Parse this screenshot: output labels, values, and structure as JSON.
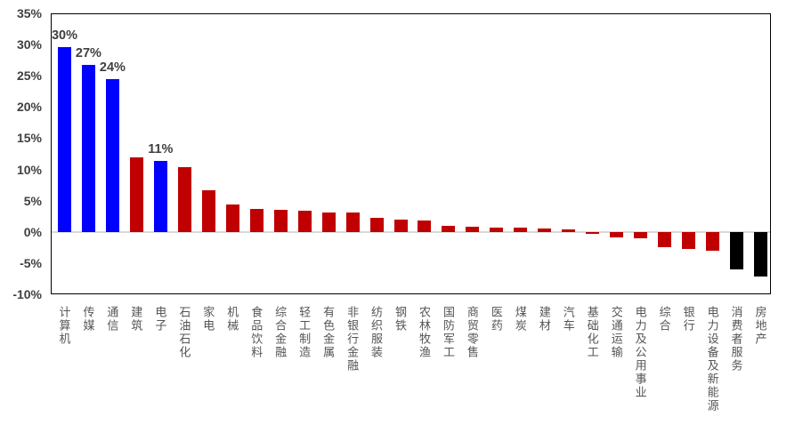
{
  "chart_data": {
    "type": "bar",
    "title": "",
    "xlabel": "",
    "ylabel": "",
    "unit": "%",
    "ylim": [
      -10,
      35
    ],
    "grid": false,
    "zero_gridline": true,
    "legend": "none",
    "yticks": [
      {
        "v": 35,
        "label": "35%"
      },
      {
        "v": 30,
        "label": "30%"
      },
      {
        "v": 25,
        "label": "25%"
      },
      {
        "v": 20,
        "label": "20%"
      },
      {
        "v": 15,
        "label": "15%"
      },
      {
        "v": 10,
        "label": "10%"
      },
      {
        "v": 5,
        "label": "5%"
      },
      {
        "v": 0,
        "label": "0%"
      },
      {
        "v": -5,
        "label": "-5%"
      },
      {
        "v": -10,
        "label": "-10%"
      }
    ],
    "categories": [
      "计算机",
      "传媒",
      "通信",
      "建筑",
      "电子",
      "石油石化",
      "家电",
      "机械",
      "食品饮料",
      "综合金融",
      "轻工制造",
      "有色金属",
      "非银行金融",
      "纺织服装",
      "钢铁",
      "农林牧渔",
      "国防军工",
      "商贸零售",
      "医药",
      "煤炭",
      "建材",
      "汽车",
      "基础化工",
      "交通运输",
      "电力及公用事业",
      "综合",
      "银行",
      "电力设备及新能源",
      "消费者服务",
      "房地产"
    ],
    "values": [
      29.6,
      26.7,
      24.5,
      11.9,
      11.4,
      10.4,
      6.6,
      4.4,
      3.7,
      3.5,
      3.4,
      3.1,
      3.1,
      2.2,
      1.9,
      1.85,
      1.0,
      0.8,
      0.75,
      0.7,
      0.55,
      0.45,
      -0.35,
      -0.9,
      -1.1,
      -2.5,
      -2.7,
      -3.0,
      -6.0,
      -7.1
    ],
    "bar_colors": [
      "blue",
      "blue",
      "blue",
      "red",
      "blue",
      "red",
      "red",
      "red",
      "red",
      "red",
      "red",
      "red",
      "red",
      "red",
      "red",
      "red",
      "red",
      "red",
      "red",
      "red",
      "red",
      "red",
      "red",
      "red",
      "red",
      "red",
      "red",
      "red",
      "black",
      "black"
    ],
    "data_labels": [
      "30%",
      "27%",
      "24%",
      "",
      "11%",
      "",
      "",
      "",
      "",
      "",
      "",
      "",
      "",
      "",
      "",
      "",
      "",
      "",
      "",
      "",
      "",
      "",
      "",
      "",
      "",
      "",
      "",
      "",
      "",
      ""
    ]
  },
  "palette": {
    "blue": "#0000fe",
    "red": "#c00000",
    "black": "#000000",
    "axis_text": "#404040",
    "category_text": "#555555",
    "zero_line": "#d9d9d9",
    "plot_border": "#000000",
    "background": "#ffffff"
  }
}
